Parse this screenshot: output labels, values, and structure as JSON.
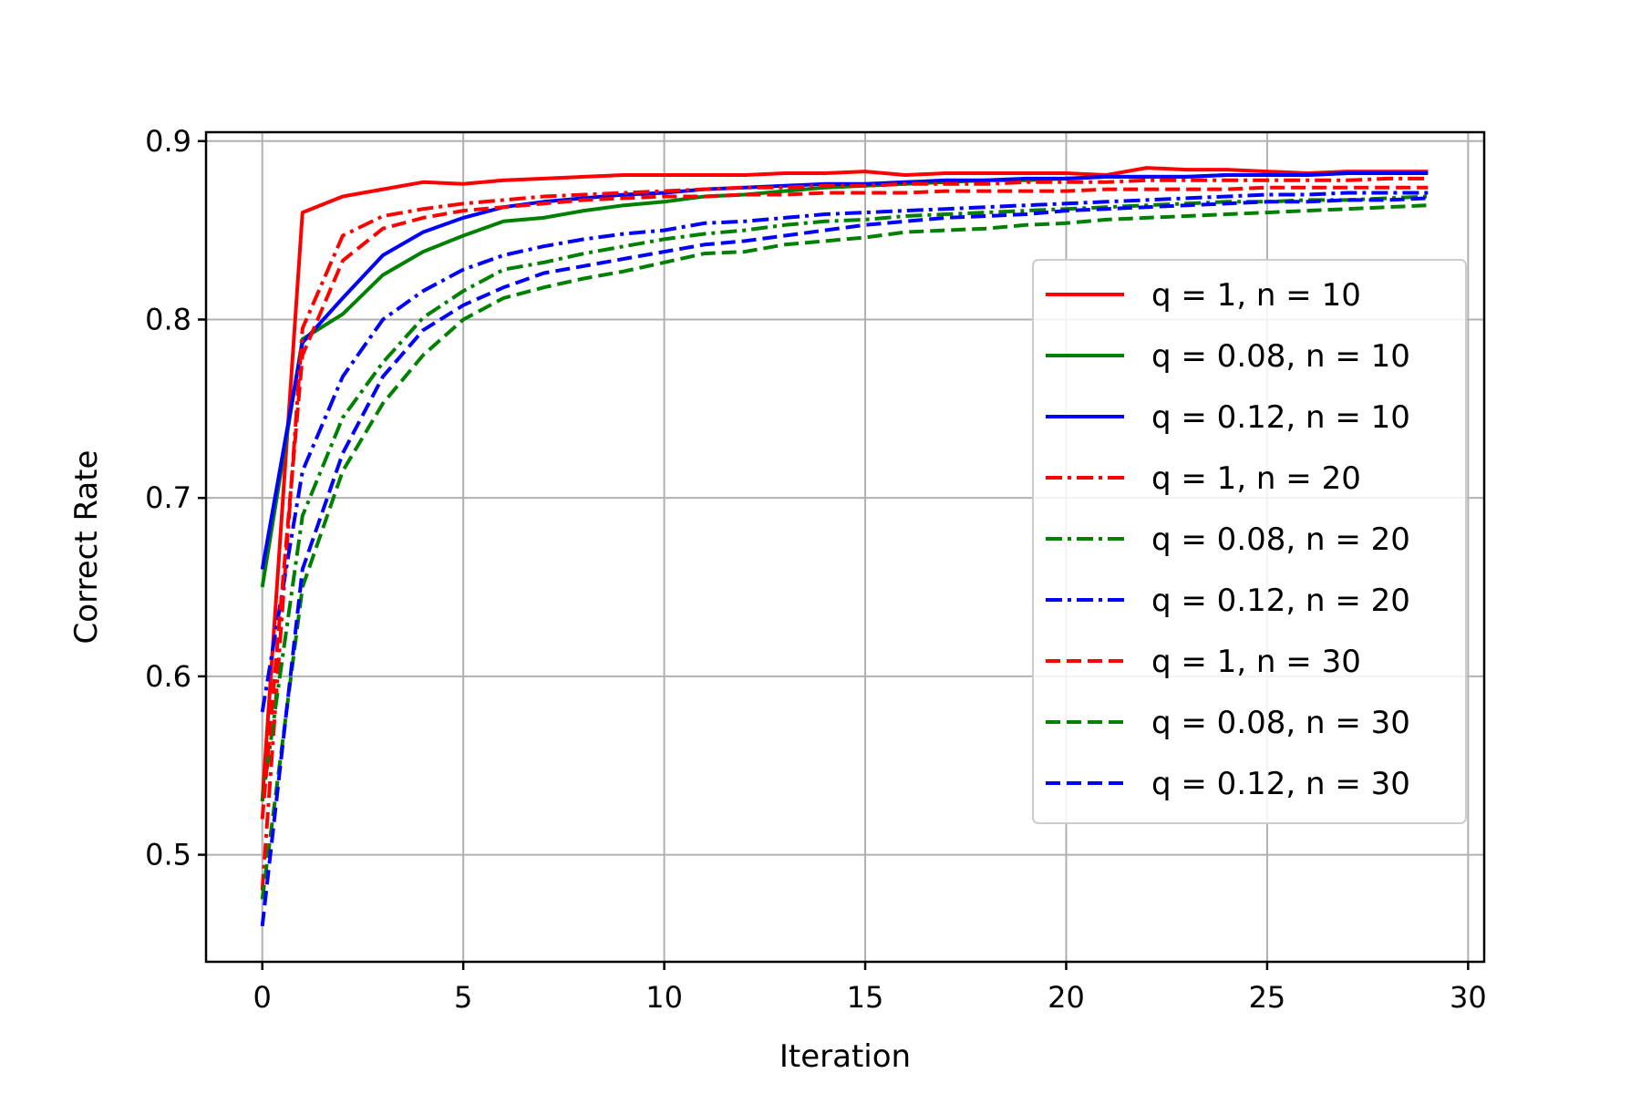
{
  "chart_data": {
    "type": "line",
    "title": "",
    "xlabel": "Iteration",
    "ylabel": "Correct Rate",
    "xlim": [
      -1.4,
      30.4
    ],
    "ylim": [
      0.44,
      0.905
    ],
    "xticks": [
      0,
      5,
      10,
      15,
      20,
      25,
      30
    ],
    "yticks": [
      0.5,
      0.6,
      0.7,
      0.8,
      0.9
    ],
    "xtick_labels": [
      "0",
      "5",
      "10",
      "15",
      "20",
      "25",
      "30"
    ],
    "ytick_labels": [
      "0.5",
      "0.6",
      "0.7",
      "0.8",
      "0.9"
    ],
    "grid": true,
    "legend_position": "center-right",
    "x": [
      0,
      1,
      2,
      3,
      4,
      5,
      6,
      7,
      8,
      9,
      10,
      11,
      12,
      13,
      14,
      15,
      16,
      17,
      18,
      19,
      20,
      21,
      22,
      23,
      24,
      25,
      26,
      27,
      28,
      29
    ],
    "series": [
      {
        "name": "q = 1, n = 10",
        "color": "#ff0000",
        "dash": "solid",
        "values": [
          0.53,
          0.86,
          0.869,
          0.873,
          0.877,
          0.876,
          0.878,
          0.879,
          0.88,
          0.881,
          0.881,
          0.881,
          0.881,
          0.882,
          0.882,
          0.883,
          0.881,
          0.882,
          0.882,
          0.882,
          0.882,
          0.881,
          0.885,
          0.884,
          0.884,
          0.883,
          0.882,
          0.883,
          0.883,
          0.883
        ]
      },
      {
        "name": "q = 0.08, n = 10",
        "color": "#008000",
        "dash": "solid",
        "values": [
          0.65,
          0.789,
          0.803,
          0.825,
          0.838,
          0.847,
          0.855,
          0.857,
          0.861,
          0.864,
          0.866,
          0.869,
          0.87,
          0.872,
          0.874,
          0.875,
          0.876,
          0.877,
          0.878,
          0.878,
          0.879,
          0.88,
          0.88,
          0.88,
          0.881,
          0.881,
          0.881,
          0.882,
          0.882,
          0.882
        ]
      },
      {
        "name": "q = 0.12, n = 10",
        "color": "#0000ff",
        "dash": "solid",
        "values": [
          0.66,
          0.787,
          0.812,
          0.836,
          0.849,
          0.857,
          0.863,
          0.866,
          0.868,
          0.87,
          0.871,
          0.873,
          0.874,
          0.875,
          0.876,
          0.876,
          0.877,
          0.878,
          0.878,
          0.879,
          0.879,
          0.88,
          0.88,
          0.88,
          0.881,
          0.881,
          0.881,
          0.882,
          0.882,
          0.882
        ]
      },
      {
        "name": "q = 1, n = 20",
        "color": "#ff0000",
        "dash": "dashdot",
        "values": [
          0.48,
          0.795,
          0.847,
          0.858,
          0.862,
          0.865,
          0.867,
          0.869,
          0.87,
          0.871,
          0.872,
          0.873,
          0.874,
          0.874,
          0.875,
          0.875,
          0.876,
          0.876,
          0.876,
          0.877,
          0.877,
          0.877,
          0.878,
          0.878,
          0.878,
          0.878,
          0.878,
          0.878,
          0.879,
          0.879
        ]
      },
      {
        "name": "q = 0.08, n = 20",
        "color": "#008000",
        "dash": "dashdot",
        "values": [
          0.53,
          0.69,
          0.745,
          0.776,
          0.801,
          0.816,
          0.828,
          0.832,
          0.837,
          0.841,
          0.845,
          0.848,
          0.85,
          0.853,
          0.855,
          0.856,
          0.858,
          0.859,
          0.86,
          0.861,
          0.862,
          0.863,
          0.864,
          0.865,
          0.866,
          0.866,
          0.867,
          0.867,
          0.868,
          0.869
        ]
      },
      {
        "name": "q = 0.12, n = 20",
        "color": "#0000ff",
        "dash": "dashdot",
        "values": [
          0.58,
          0.715,
          0.768,
          0.8,
          0.816,
          0.828,
          0.836,
          0.841,
          0.845,
          0.848,
          0.85,
          0.854,
          0.855,
          0.857,
          0.859,
          0.86,
          0.861,
          0.862,
          0.863,
          0.864,
          0.865,
          0.866,
          0.867,
          0.868,
          0.869,
          0.87,
          0.87,
          0.871,
          0.871,
          0.871
        ]
      },
      {
        "name": "q = 1, n = 30",
        "color": "#ff0000",
        "dash": "dashed",
        "values": [
          0.52,
          0.78,
          0.833,
          0.851,
          0.857,
          0.861,
          0.863,
          0.865,
          0.867,
          0.868,
          0.869,
          0.869,
          0.87,
          0.87,
          0.871,
          0.871,
          0.871,
          0.872,
          0.872,
          0.872,
          0.872,
          0.873,
          0.873,
          0.873,
          0.873,
          0.874,
          0.874,
          0.874,
          0.874,
          0.874
        ]
      },
      {
        "name": "q = 0.08, n = 30",
        "color": "#008000",
        "dash": "dashed",
        "values": [
          0.475,
          0.65,
          0.715,
          0.753,
          0.78,
          0.8,
          0.812,
          0.818,
          0.823,
          0.827,
          0.832,
          0.837,
          0.838,
          0.842,
          0.844,
          0.846,
          0.849,
          0.85,
          0.851,
          0.853,
          0.854,
          0.856,
          0.857,
          0.858,
          0.859,
          0.86,
          0.861,
          0.862,
          0.863,
          0.864
        ]
      },
      {
        "name": "q = 0.12, n = 30",
        "color": "#0000ff",
        "dash": "dashed",
        "values": [
          0.46,
          0.66,
          0.725,
          0.768,
          0.794,
          0.808,
          0.818,
          0.826,
          0.83,
          0.834,
          0.838,
          0.842,
          0.844,
          0.847,
          0.85,
          0.853,
          0.855,
          0.857,
          0.858,
          0.859,
          0.861,
          0.862,
          0.863,
          0.864,
          0.865,
          0.866,
          0.866,
          0.867,
          0.867,
          0.868
        ]
      }
    ]
  }
}
